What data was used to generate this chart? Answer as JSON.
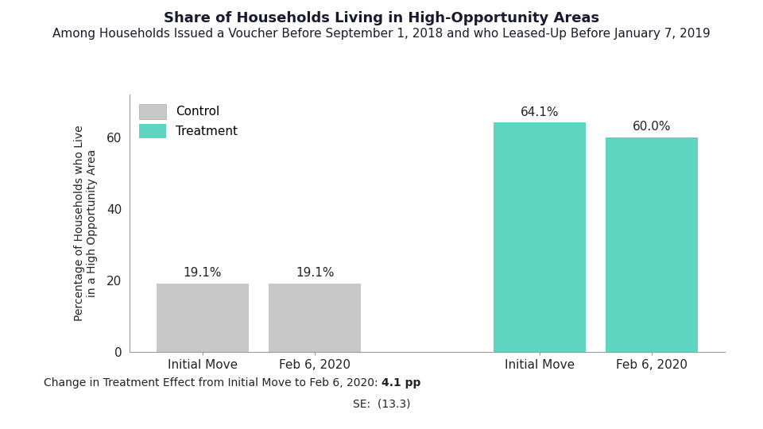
{
  "title": "Share of Households Living in High-Opportunity Areas",
  "subtitle": "Among Households Issued a Voucher Before September 1, 2018 and who Leased-Up Before January 7, 2019",
  "title_color": "#1a1a2e",
  "subtitle_color": "#1a1a2e",
  "bars": [
    {
      "label": "Initial Move",
      "group": "Control",
      "value": 19.1,
      "color": "#c8c8c8"
    },
    {
      "label": "Feb 6, 2020",
      "group": "Control",
      "value": 19.1,
      "color": "#c8c8c8"
    },
    {
      "label": "Initial Move",
      "group": "Treatment",
      "value": 64.1,
      "color": "#5dd5c0"
    },
    {
      "label": "Feb 6, 2020",
      "group": "Treatment",
      "value": 60.0,
      "color": "#5dd5c0"
    }
  ],
  "bar_positions": [
    1,
    2,
    4,
    5
  ],
  "bar_width": 0.82,
  "xtick_labels": [
    "Initial Move",
    "Feb 6, 2020",
    "Initial Move",
    "Feb 6, 2020"
  ],
  "xtick_positions": [
    1,
    2,
    4,
    5
  ],
  "ytick_values": [
    0,
    20,
    40,
    60
  ],
  "ylabel": "Percentage of Households who Live\nin a High Opportunity Area",
  "ylim": [
    0,
    72
  ],
  "legend_labels": [
    "Control",
    "Treatment"
  ],
  "legend_colors": [
    "#c8c8c8",
    "#5dd5c0"
  ],
  "annotation_fontsize": 11,
  "footer_normal": "Change in Treatment Effect from Initial Move to Feb 6, 2020: ",
  "footer_bold": "4.1 pp",
  "footer_se": "SE:  (13.3)",
  "background_color": "#ffffff",
  "axis_color": "#222222",
  "title_fontsize": 13,
  "subtitle_fontsize": 11,
  "ylabel_fontsize": 10,
  "xtick_fontsize": 11,
  "ytick_fontsize": 11,
  "legend_fontsize": 11
}
